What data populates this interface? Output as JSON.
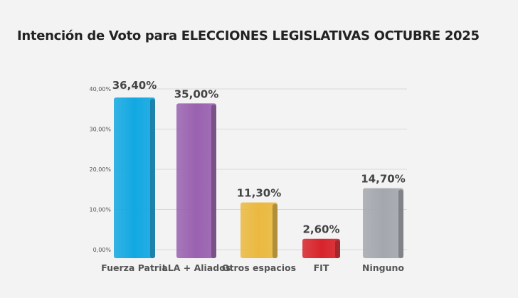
{
  "chart_data": {
    "type": "bar",
    "title": "Intención de Voto para ELECCIONES LEGISLATIVAS OCTUBRE 2025",
    "categories": [
      "Fuerza Patria",
      "LLA + Aliados",
      "Otros espacios",
      "FIT",
      "Ninguno"
    ],
    "values": [
      36.4,
      35.0,
      11.3,
      2.6,
      14.7
    ],
    "data_labels": [
      "36,40%",
      "35,00%",
      "11,30%",
      "2,60%",
      "14,70%"
    ],
    "colors": [
      "#12a8e2",
      "#9a62b0",
      "#eab940",
      "#d8242c",
      "#a4a8ae"
    ],
    "yticks": [
      "0,00%",
      "10,00%",
      "20,00%",
      "30,00%",
      "40,00%"
    ],
    "ylim": [
      0,
      40
    ],
    "grid": true,
    "xlabel": "",
    "ylabel": ""
  }
}
